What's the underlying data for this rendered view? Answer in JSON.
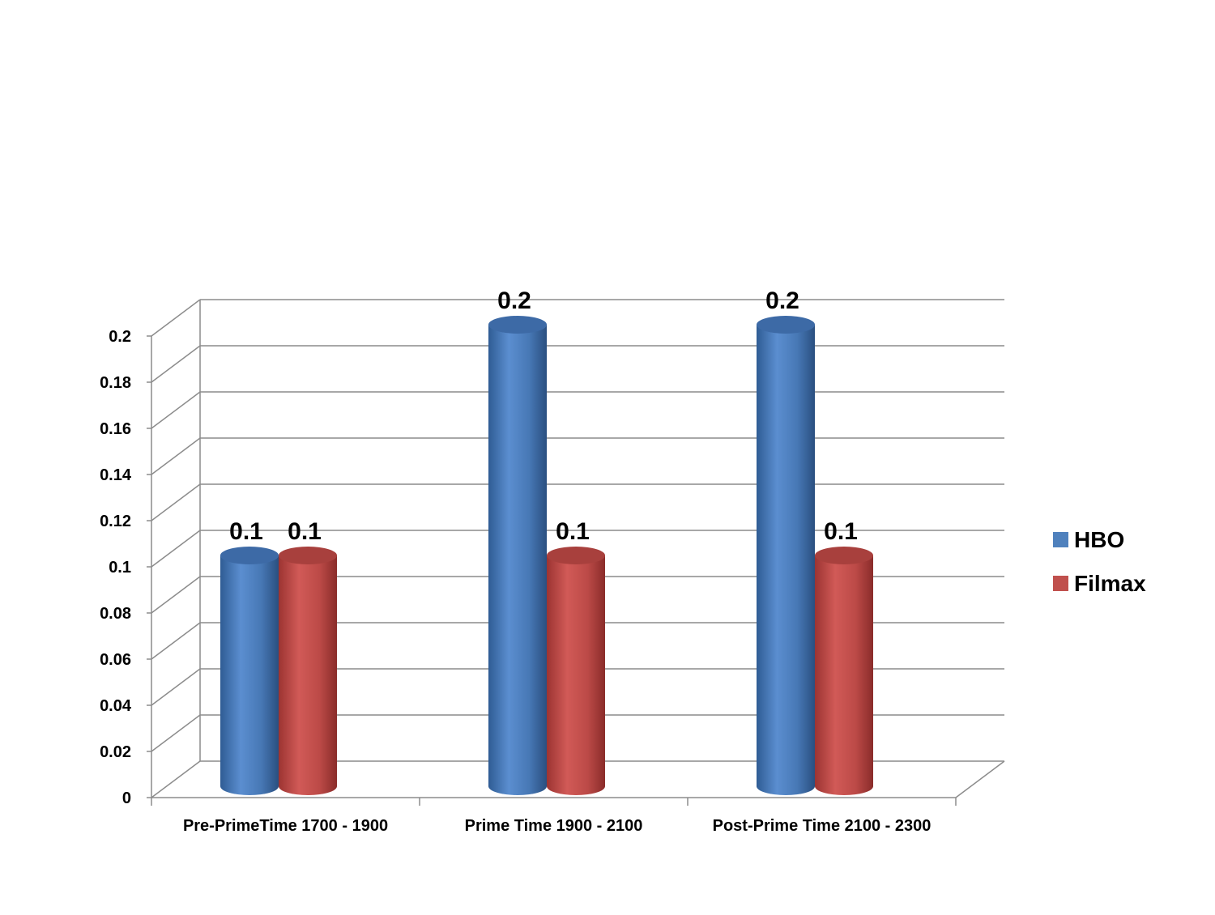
{
  "chart_data": {
    "type": "bar",
    "title": "",
    "xlabel": "",
    "ylabel": "",
    "categories": [
      "Pre-PrimeTime 1700 - 1900",
      "Prime Time 1900 - 2100",
      "Post-Prime Time 2100 - 2300"
    ],
    "series": [
      {
        "name": "HBO",
        "values": [
          0.1,
          0.2,
          0.2
        ],
        "color": "#4F81BD",
        "labels": [
          "0.1",
          "0.2",
          "0.2"
        ]
      },
      {
        "name": "Filmax",
        "values": [
          0.1,
          0.1,
          0.1
        ],
        "color": "#C0504D",
        "labels": [
          "0.1",
          "0.1",
          "0.1"
        ]
      }
    ],
    "ylim": [
      0,
      0.2
    ],
    "yticks": [
      "0",
      "0.02",
      "0.04",
      "0.06",
      "0.08",
      "0.1",
      "0.12",
      "0.14",
      "0.16",
      "0.18",
      "0.2"
    ],
    "grid": true,
    "legend": "right",
    "style": "3d-cylinder"
  }
}
